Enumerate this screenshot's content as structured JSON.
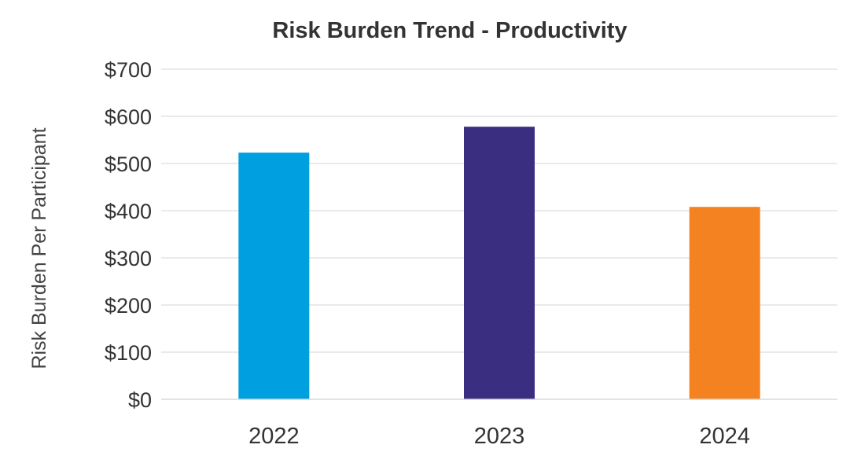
{
  "chart_data": {
    "type": "bar",
    "title": "Risk Burden Trend - Productivity",
    "xlabel": "",
    "ylabel": "Risk Burden Per Participant",
    "categories": [
      "2022",
      "2023",
      "2024"
    ],
    "values": [
      523,
      578,
      408
    ],
    "colors": [
      "#00A0E0",
      "#3A2E80",
      "#F58220"
    ],
    "ylim": [
      0,
      700
    ],
    "yticks": [
      0,
      100,
      200,
      300,
      400,
      500,
      600,
      700
    ],
    "ytick_labels": [
      "$0",
      "$100",
      "$200",
      "$300",
      "$400",
      "$500",
      "$600",
      "$700"
    ],
    "grid": true,
    "legend": "none"
  }
}
